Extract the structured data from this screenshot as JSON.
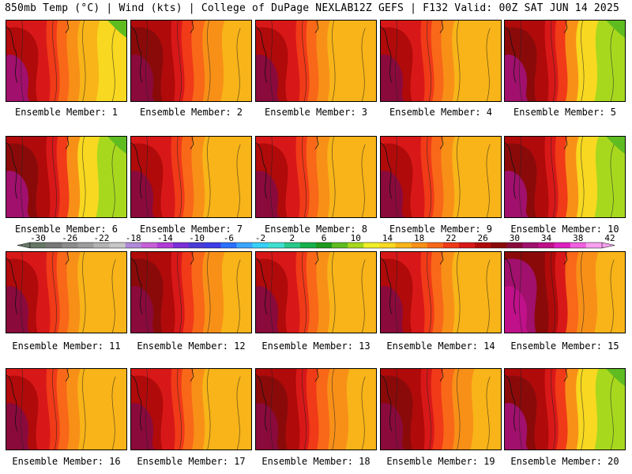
{
  "header": {
    "left": "850mb Temp (°C) | Wind (kts) | College of DuPage NEXLAB",
    "right": "12Z GEFS | F132 Valid: 00Z SAT JUN 14 2025"
  },
  "colorbar": {
    "labels": [
      "-30",
      "-26",
      "-22",
      "-18",
      "-14",
      "-10",
      "-6",
      "-2",
      "2",
      "6",
      "10",
      "14",
      "18",
      "22",
      "26",
      "30",
      "34",
      "38",
      "42"
    ],
    "colors": [
      "#667766",
      "#777777",
      "#8c8c8c",
      "#9d9d9d",
      "#b3b3b3",
      "#c7c7c7",
      "#b08ad8",
      "#c760d8",
      "#b13cd8",
      "#7b2fd8",
      "#4a3cd8",
      "#3c3ce8",
      "#2a70ff",
      "#3aa6ff",
      "#38d0f8",
      "#40e0d0",
      "#29c98a",
      "#17b04a",
      "#1e9a1e",
      "#5fbc20",
      "#a8d81e",
      "#f0f028",
      "#f8d820",
      "#f8b418",
      "#f89018",
      "#f86818",
      "#f03a18",
      "#d81818",
      "#b00a0a",
      "#8a0a0a",
      "#8a0a3c",
      "#a0106c",
      "#c0108a",
      "#e020c0",
      "#f060e0",
      "#f8a0f0"
    ]
  },
  "members": [
    {
      "label": "Ensemble Member: 1",
      "style": "e"
    },
    {
      "label": "Ensemble Member: 2",
      "style": "c"
    },
    {
      "label": "Ensemble Member: 3",
      "style": "a"
    },
    {
      "label": "Ensemble Member: 4",
      "style": "a"
    },
    {
      "label": "Ensemble Member: 5",
      "style": "b"
    },
    {
      "label": "Ensemble Member: 6",
      "style": "b"
    },
    {
      "label": "Ensemble Member: 7",
      "style": "a"
    },
    {
      "label": "Ensemble Member: 8",
      "style": "a"
    },
    {
      "label": "Ensemble Member: 9",
      "style": "a"
    },
    {
      "label": "Ensemble Member: 10",
      "style": "b"
    },
    {
      "label": "Ensemble Member: 11",
      "style": "a"
    },
    {
      "label": "Ensemble Member: 12",
      "style": "c"
    },
    {
      "label": "Ensemble Member: 13",
      "style": "a"
    },
    {
      "label": "Ensemble Member: 14",
      "style": "a"
    },
    {
      "label": "Ensemble Member: 15",
      "style": "d"
    },
    {
      "label": "Ensemble Member: 16",
      "style": "a"
    },
    {
      "label": "Ensemble Member: 17",
      "style": "a"
    },
    {
      "label": "Ensemble Member: 18",
      "style": "c"
    },
    {
      "label": "Ensemble Member: 19",
      "style": "c"
    },
    {
      "label": "Ensemble Member: 20",
      "style": "b"
    }
  ]
}
